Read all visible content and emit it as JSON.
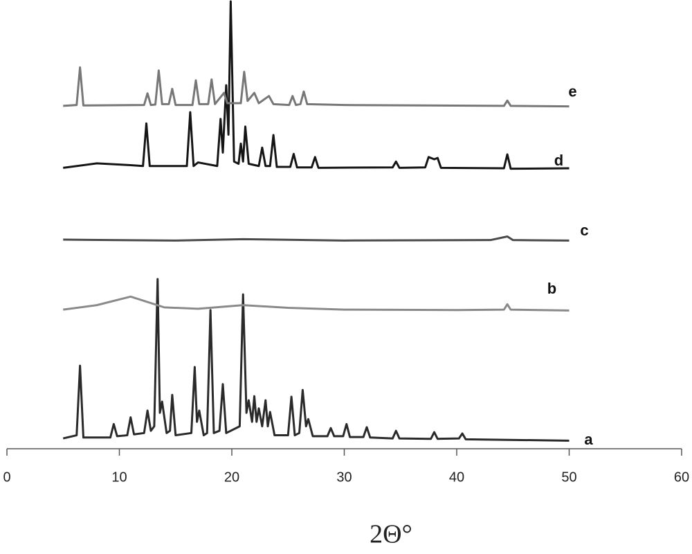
{
  "chart_data": {
    "type": "line",
    "x_label": "2Θ°",
    "xlim": [
      0,
      60
    ],
    "xticks": [
      0,
      10,
      20,
      30,
      40,
      50,
      60
    ],
    "ylim": [
      0,
      100
    ],
    "series": [
      {
        "name": "a",
        "color": "#2a2a2a",
        "x": [
          5,
          6.2,
          6.5,
          6.8,
          9.2,
          9.5,
          9.8,
          10.7,
          11,
          11.3,
          12.2,
          12.5,
          12.8,
          13.1,
          13.4,
          13.6,
          13.8,
          14.2,
          14.5,
          14.7,
          15,
          16.4,
          16.7,
          16.9,
          17.1,
          17.5,
          17.8,
          18.1,
          18.4,
          18.9,
          19.2,
          19.5,
          20.7,
          21,
          21.3,
          21.5,
          21.8,
          22,
          22.2,
          22.4,
          22.7,
          23,
          23.2,
          23.4,
          23.8,
          25,
          25.3,
          25.6,
          26,
          26.3,
          26.6,
          26.8,
          27.2,
          28.5,
          28.8,
          29.1,
          29.9,
          30.2,
          30.5,
          31.7,
          32,
          32.3,
          34.3,
          34.6,
          34.9,
          37.7,
          38,
          38.3,
          40.2,
          40.5,
          40.8,
          50
        ],
        "values": [
          2.3,
          3,
          18.5,
          2.5,
          2.5,
          5.5,
          2.8,
          3,
          7,
          3.2,
          3.5,
          8.5,
          4,
          5,
          37.8,
          8,
          10.5,
          3.5,
          4,
          12,
          3,
          3.5,
          18.2,
          6,
          8.5,
          3,
          3.5,
          30.9,
          3.5,
          4,
          14.4,
          3.5,
          5,
          34.4,
          8,
          10.8,
          6,
          11.7,
          6,
          9,
          5,
          10.8,
          5,
          8.2,
          3,
          3,
          11.6,
          3,
          3.5,
          13.1,
          5,
          6.6,
          2.8,
          2.8,
          4.6,
          2.8,
          2.8,
          5.5,
          2.6,
          2.6,
          4.8,
          2.5,
          2.3,
          4,
          2.3,
          2.2,
          3.7,
          2.2,
          2.3,
          3.4,
          2.1,
          1.8
        ]
      },
      {
        "name": "b",
        "color": "#8a8a8a",
        "x": [
          5,
          8,
          11,
          14,
          17,
          21,
          25,
          30,
          40,
          44.2,
          44.5,
          44.8,
          50
        ],
        "values": [
          31,
          32,
          33.9,
          31.5,
          31.2,
          32,
          31.4,
          31,
          30.9,
          31,
          32.2,
          31,
          30.8
        ]
      },
      {
        "name": "c",
        "color": "#4a4a4a",
        "x": [
          5,
          15,
          21,
          30,
          43,
          44.5,
          45,
          50
        ],
        "values": [
          46.6,
          46.4,
          46.7,
          46.4,
          46.5,
          47.3,
          46.5,
          46.4
        ]
      },
      {
        "name": "d",
        "color": "#151515",
        "x": [
          5,
          8,
          11,
          12.1,
          12.4,
          12.7,
          16,
          16.3,
          16.6,
          17,
          18.7,
          19,
          19.2,
          19.5,
          19.7,
          19.9,
          20.2,
          20.6,
          20.8,
          21,
          21.2,
          21.5,
          22.4,
          22.7,
          23,
          23.4,
          23.7,
          24,
          25.2,
          25.5,
          25.8,
          27.1,
          27.4,
          27.7,
          34.3,
          34.6,
          34.9,
          37.2,
          37.5,
          38,
          38.3,
          38.6,
          44.2,
          44.5,
          44.8,
          50
        ],
        "values": [
          62.6,
          63.6,
          63.2,
          63,
          72.5,
          63,
          63,
          75,
          63,
          63.8,
          63,
          73.5,
          66,
          81,
          70,
          99.7,
          64,
          63.5,
          68,
          64,
          71.8,
          63.5,
          63,
          67.1,
          63,
          63,
          69.9,
          62.8,
          62.8,
          65.7,
          62.7,
          62.7,
          65,
          62.6,
          62.7,
          64,
          62.6,
          62.7,
          65,
          64.5,
          64.8,
          62.6,
          62.5,
          65.6,
          62.4,
          62.5
        ]
      },
      {
        "name": "e",
        "color": "#777777",
        "x": [
          5,
          6.2,
          6.5,
          6.8,
          12.2,
          12.5,
          12.8,
          13.2,
          13.5,
          13.8,
          14.4,
          14.7,
          15,
          16.5,
          16.8,
          17.1,
          17.9,
          18.2,
          18.5,
          19.3,
          19.6,
          20.8,
          21.1,
          21.4,
          22,
          22.4,
          23.3,
          23.7,
          25.1,
          25.4,
          25.7,
          26.1,
          26.4,
          26.7,
          30,
          44.2,
          44.5,
          44.8,
          50
        ],
        "values": [
          76.4,
          76.6,
          85,
          76.5,
          76.6,
          79.2,
          76.6,
          76.7,
          84.3,
          76.8,
          76.8,
          80.2,
          76.6,
          76.6,
          82.1,
          76.8,
          76.8,
          82.3,
          76.8,
          79.3,
          77,
          77,
          84,
          77.5,
          79.3,
          77,
          78.6,
          76.8,
          76.6,
          78.6,
          76.6,
          76.8,
          79.6,
          76.8,
          76.6,
          76.4,
          77.6,
          76.4,
          76.3
        ]
      }
    ]
  }
}
